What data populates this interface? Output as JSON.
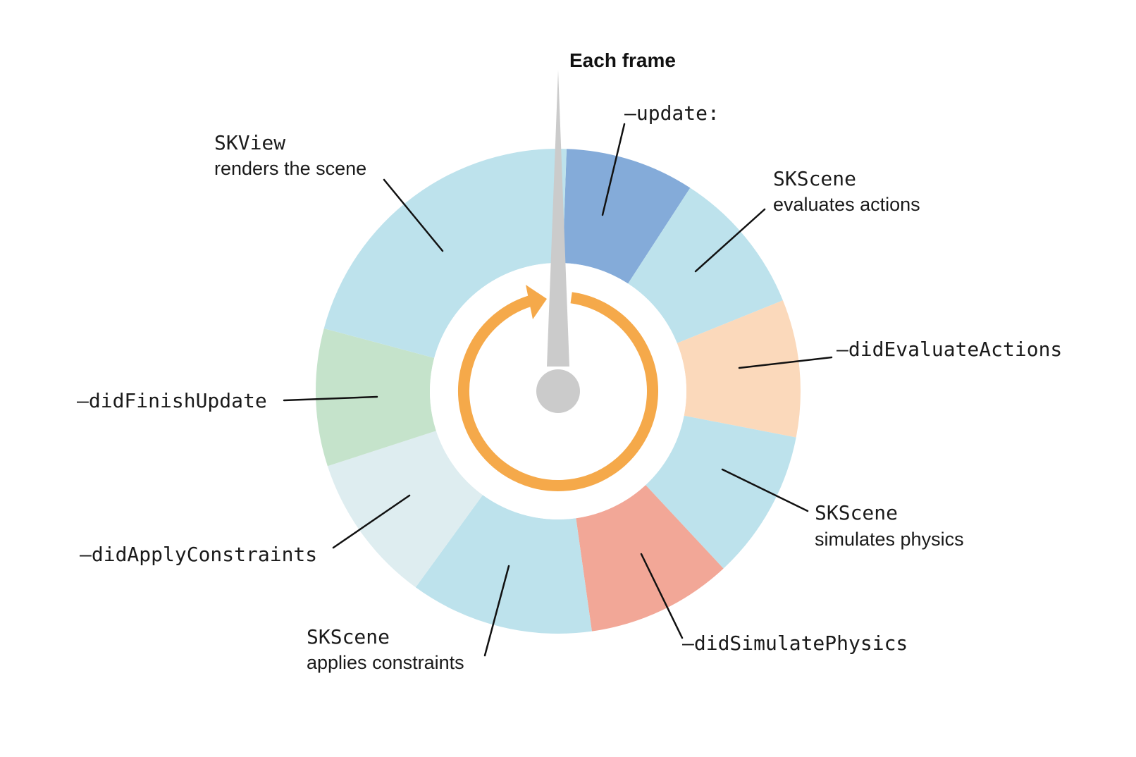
{
  "title": "Each frame",
  "colors": {
    "update": "#84abd9",
    "evaluate_actions": "#bde2ec",
    "did_evaluate_actions": "#fbd9bb",
    "simulate_physics": "#bde2ec",
    "did_simulate_physics": "#f2a797",
    "apply_constraints": "#bde2ec",
    "did_apply_constraints": "#deedf0",
    "did_finish_update": "#c5e3cb",
    "render": "#bde2ec",
    "loop_arrow": "#f5a94a",
    "needle": "#cbcbcb"
  },
  "labels": {
    "update": "–update:",
    "evaluate_actions_obj": "SKScene",
    "evaluate_actions_desc": "evaluates actions",
    "did_evaluate_actions": "–didEvaluateActions",
    "simulate_physics_obj": "SKScene",
    "simulate_physics_desc": "simulates physics",
    "did_simulate_physics": "–didSimulatePhysics",
    "apply_constraints_obj": "SKScene",
    "apply_constraints_desc": "applies constraints",
    "did_apply_constraints": "–didApplyConstraints",
    "did_finish_update": "–didFinishUpdate",
    "render_obj": "SKView",
    "render_desc": "renders the scene"
  }
}
